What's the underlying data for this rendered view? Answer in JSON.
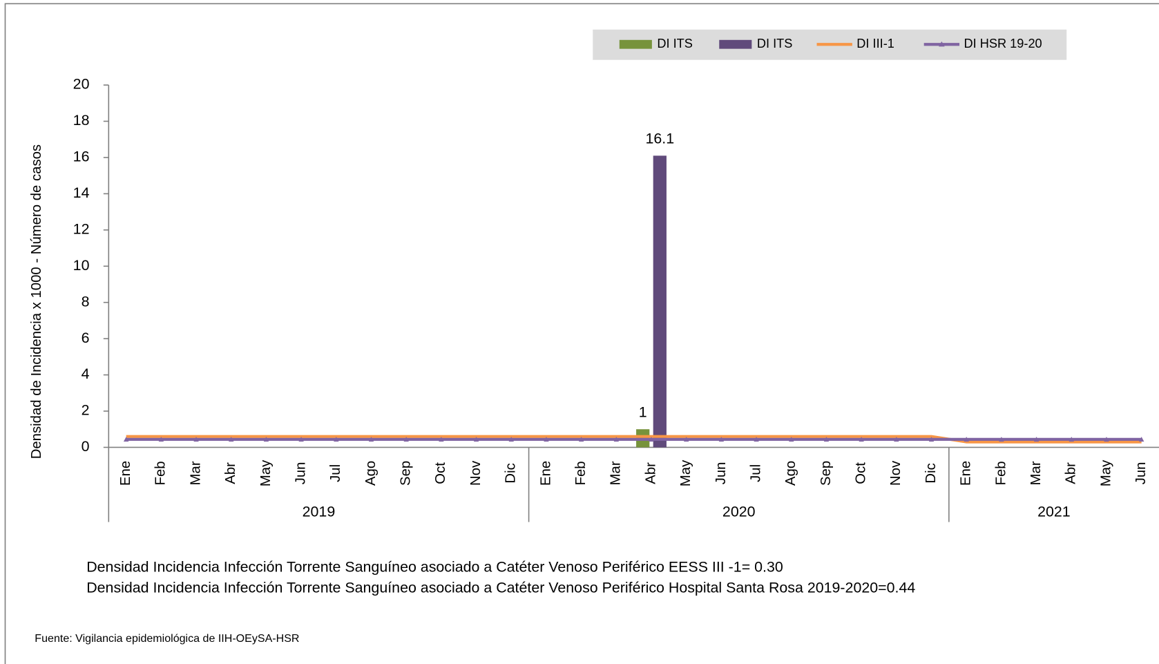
{
  "chart_data": {
    "type": "bar",
    "ylabel": "Densidad de Incidencia x 1000  - Número de casos",
    "categories": [
      "Ene",
      "Feb",
      "Mar",
      "Abr",
      "May",
      "Jun",
      "Jul",
      "Ago",
      "Sep",
      "Oct",
      "Nov",
      "Dic",
      "Ene",
      "Feb",
      "Mar",
      "Abr",
      "May",
      "Jun",
      "Jul",
      "Ago",
      "Sep",
      "Oct",
      "Nov",
      "Dic",
      "Ene",
      "Feb",
      "Mar",
      "Abr",
      "May",
      "Jun"
    ],
    "x_groups": [
      {
        "name": "2019",
        "span": 12
      },
      {
        "name": "2020",
        "span": 12
      },
      {
        "name": "2021",
        "span": 6
      }
    ],
    "ylim": [
      0,
      20
    ],
    "yticks": [
      0,
      2,
      4,
      6,
      8,
      10,
      12,
      14,
      16,
      18,
      20
    ],
    "legend": "top-right",
    "series": [
      {
        "name": "DI ITS",
        "type": "bar",
        "color": "#77933c",
        "values": [
          null,
          null,
          null,
          null,
          null,
          null,
          null,
          null,
          null,
          null,
          null,
          null,
          null,
          null,
          null,
          1,
          null,
          null,
          null,
          null,
          null,
          null,
          null,
          null,
          null,
          null,
          null,
          null,
          null,
          null
        ]
      },
      {
        "name": "DI ITS",
        "type": "bar",
        "color": "#604a7b",
        "values": [
          null,
          null,
          null,
          null,
          null,
          null,
          null,
          null,
          null,
          null,
          null,
          null,
          null,
          null,
          null,
          16.1,
          null,
          null,
          null,
          null,
          null,
          null,
          null,
          null,
          null,
          null,
          null,
          null,
          null,
          null
        ]
      },
      {
        "name": "DI III-1",
        "type": "line",
        "color": "#f79646",
        "values": [
          0.6,
          0.6,
          0.6,
          0.6,
          0.6,
          0.6,
          0.6,
          0.6,
          0.6,
          0.6,
          0.6,
          0.6,
          0.6,
          0.6,
          0.6,
          0.6,
          0.6,
          0.6,
          0.6,
          0.6,
          0.6,
          0.6,
          0.6,
          0.6,
          0.3,
          0.3,
          0.3,
          0.3,
          0.3,
          0.3
        ]
      },
      {
        "name": "DI HSR 19-20",
        "type": "line",
        "color": "#8064a2",
        "marker": "triangle",
        "values": [
          0.44,
          0.44,
          0.44,
          0.44,
          0.44,
          0.44,
          0.44,
          0.44,
          0.44,
          0.44,
          0.44,
          0.44,
          0.44,
          0.44,
          0.44,
          0.44,
          0.44,
          0.44,
          0.44,
          0.44,
          0.44,
          0.44,
          0.44,
          0.44,
          0.44,
          0.44,
          0.44,
          0.44,
          0.44,
          0.44
        ]
      }
    ],
    "annotations": [
      "Densidad Incidencia Infección Torrente Sanguíneo asociado a Catéter Venoso Periférico  EESS III -1= 0.30",
      "Densidad Incidencia Infección Torrente Sanguíneo asociado a Catéter Venoso Periférico Hospital  Santa Rosa 2019-2020=0.44",
      "Fuente: Vigilancia epidemiológica de IIH-OEySA-HSR"
    ]
  }
}
